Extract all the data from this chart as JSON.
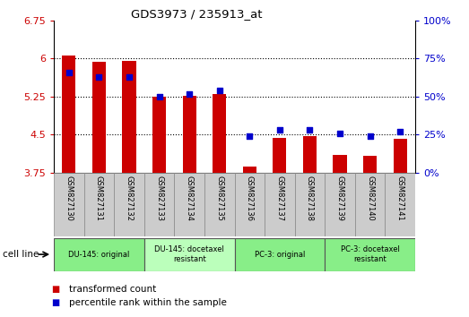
{
  "title": "GDS3973 / 235913_at",
  "samples": [
    "GSM827130",
    "GSM827131",
    "GSM827132",
    "GSM827133",
    "GSM827134",
    "GSM827135",
    "GSM827136",
    "GSM827137",
    "GSM827138",
    "GSM827139",
    "GSM827140",
    "GSM827141"
  ],
  "bar_values": [
    6.07,
    5.93,
    5.96,
    5.25,
    5.27,
    5.31,
    3.88,
    4.44,
    4.47,
    4.1,
    4.08,
    4.42
  ],
  "dot_values": [
    66,
    63,
    63,
    50,
    52,
    54,
    24,
    28,
    28,
    26,
    24,
    27
  ],
  "bar_color": "#cc0000",
  "dot_color": "#0000cc",
  "ylim_left": [
    3.75,
    6.75
  ],
  "ylim_right": [
    0,
    100
  ],
  "yticks_left": [
    3.75,
    4.5,
    5.25,
    6.0,
    6.75
  ],
  "yticks_right": [
    0,
    25,
    50,
    75,
    100
  ],
  "ytick_labels_left": [
    "3.75",
    "4.5",
    "5.25",
    "6",
    "6.75"
  ],
  "ytick_labels_right": [
    "0%",
    "25%",
    "50%",
    "75%",
    "100%"
  ],
  "cell_line_groups": [
    {
      "label": "DU-145: original",
      "start": 0,
      "end": 3,
      "color": "#88ee88"
    },
    {
      "label": "DU-145: docetaxel\nresistant",
      "start": 3,
      "end": 6,
      "color": "#bbffbb"
    },
    {
      "label": "PC-3: original",
      "start": 6,
      "end": 9,
      "color": "#88ee88"
    },
    {
      "label": "PC-3: docetaxel\nresistant",
      "start": 9,
      "end": 12,
      "color": "#88ee88"
    }
  ],
  "legend_bar_label": "transformed count",
  "legend_dot_label": "percentile rank within the sample",
  "cell_line_label": "cell line",
  "grid_color": "#000000",
  "sample_bg": "#cccccc",
  "bar_width": 0.45
}
